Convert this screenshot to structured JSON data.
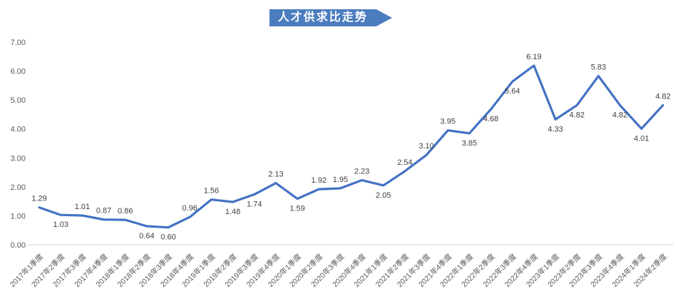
{
  "title_banner": {
    "text": "人才供求比走势",
    "fill": "#4A7CBE",
    "text_color": "#FFFFFF"
  },
  "chart_data": {
    "type": "line",
    "title": "人才供求比走势",
    "categories": [
      "2017年1季度",
      "2017年2季度",
      "2017年3季度",
      "2017年4季度",
      "2018年1季度",
      "2018年2季度",
      "2018年3季度",
      "2018年4季度",
      "2019年1季度",
      "2019年2季度",
      "2019年3季度",
      "2019年4季度",
      "2020年1季度",
      "2020年2季度",
      "2020年3季度",
      "2020年4季度",
      "2021年1季度",
      "2021年2季度",
      "2021年3季度",
      "2021年4季度",
      "2022年1季度",
      "2022年2季度",
      "2022年3季度",
      "2022年4季度",
      "2023年1季度",
      "2023年2季度",
      "2023年3季度",
      "2023年4季度",
      "2024年1季度",
      "2024年2季度"
    ],
    "values": [
      1.29,
      1.03,
      1.01,
      0.87,
      0.86,
      0.64,
      0.6,
      0.96,
      1.56,
      1.48,
      1.74,
      2.13,
      1.59,
      1.92,
      1.95,
      2.23,
      2.05,
      2.54,
      3.1,
      3.95,
      3.85,
      4.68,
      5.64,
      6.19,
      4.33,
      4.82,
      5.83,
      4.82,
      4.01,
      4.82
    ],
    "data_labels": [
      "1.29",
      "1.03",
      "1.01",
      "0.87",
      "0.86",
      "0.64",
      "0.60",
      "0.96",
      "1.56",
      "1.48",
      "1.74",
      "2.13",
      "1.59",
      "1.92",
      "1.95",
      "2.23",
      "2.05",
      "2.54",
      "3.10",
      "3.95",
      "3.85",
      "4.68",
      "5.64",
      "6.19",
      "4.33",
      "4.82",
      "5.83",
      "4.82",
      "4.01",
      "4.82"
    ],
    "label_positions": [
      "above",
      "below",
      "above",
      "above",
      "above",
      "below",
      "below",
      "above",
      "above",
      "below",
      "below",
      "above",
      "below",
      "above",
      "above",
      "above",
      "below",
      "above",
      "above",
      "above",
      "below",
      "below",
      "below",
      "above",
      "below",
      "below",
      "above",
      "below",
      "below",
      "above"
    ],
    "ylim": [
      0,
      7
    ],
    "ytick_labels": [
      "0.00",
      "1.00",
      "2.00",
      "3.00",
      "4.00",
      "5.00",
      "6.00",
      "7.00"
    ],
    "xlabel": "",
    "ylabel": "",
    "grid": false,
    "legend": "none",
    "line_color": "#4472C4",
    "axis_line_color": "#D9D9D9",
    "axis_text_color": "#595959",
    "data_label_color": "#404040"
  }
}
